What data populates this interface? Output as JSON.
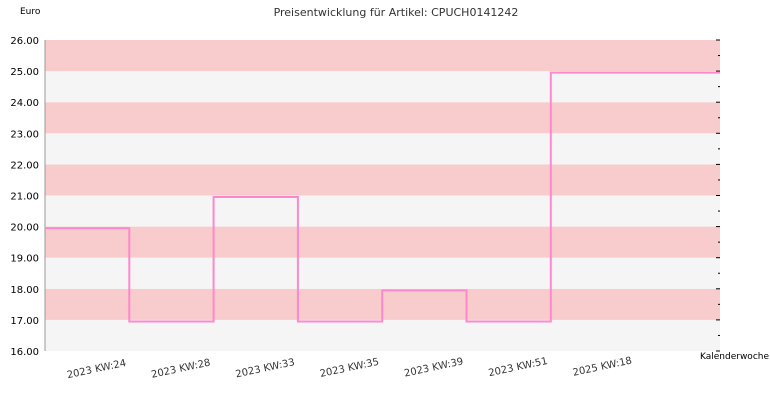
{
  "chart_data": {
    "type": "line",
    "title": "Preisentwicklung für Artikel: CPUCH0141242",
    "ylabel": "Euro",
    "xlabel": "Kalenderwoche",
    "ylim": [
      16,
      26
    ],
    "yticks": [
      "16.00",
      "17.00",
      "18.00",
      "19.00",
      "20.00",
      "21.00",
      "22.00",
      "23.00",
      "24.00",
      "25.00",
      "26.00"
    ],
    "step": true,
    "categories": [
      "2023 KW:24",
      "2023 KW:28",
      "2023 KW:33",
      "2023 KW:35",
      "2023 KW:39",
      "2023 KW:51",
      "2025 KW:18"
    ],
    "series": [
      {
        "values": [
          19.95,
          16.95,
          20.95,
          16.95,
          17.95,
          16.95,
          24.95
        ]
      }
    ],
    "grid": true,
    "band_colors": [
      "#f8cccc",
      "#f5f5f5"
    ],
    "line_color": "#ff88cc"
  }
}
